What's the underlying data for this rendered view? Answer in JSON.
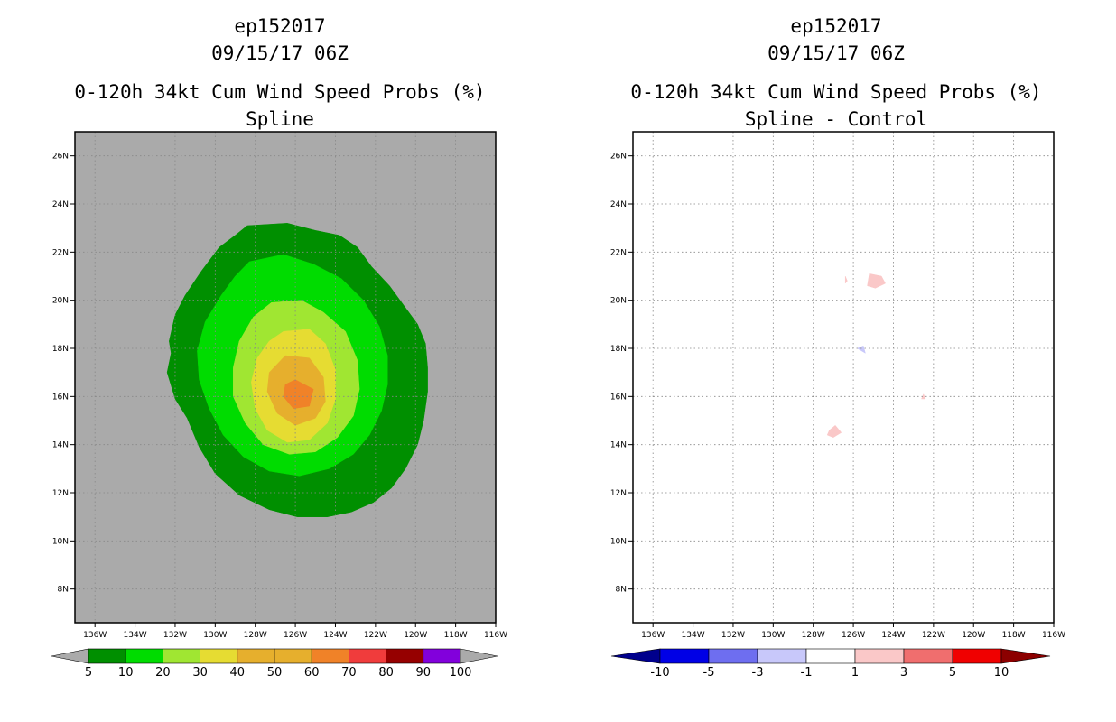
{
  "chart_data": [
    {
      "type": "contour",
      "title_lines": [
        "ep152017",
        "09/15/17 06Z"
      ],
      "subtitle_lines": [
        "0-120h 34kt Cum Wind Speed Probs (%)",
        "Spline"
      ],
      "x_tick_labels": [
        "136W",
        "134W",
        "132W",
        "130W",
        "128W",
        "126W",
        "124W",
        "122W",
        "120W",
        "118W",
        "116W"
      ],
      "y_tick_labels": [
        "26N",
        "24N",
        "22N",
        "20N",
        "18N",
        "16N",
        "14N",
        "12N",
        "10N",
        "8N"
      ],
      "xlim": [
        -137,
        -116
      ],
      "ylim": [
        6.6,
        27
      ],
      "grid": true,
      "background_color": "#aaaaaa",
      "contour_levels": [
        {
          "min": 5,
          "color": "#008f00",
          "outline": [
            [
              -128.4,
              23.1
            ],
            [
              -126.4,
              23.2
            ],
            [
              -125.0,
              22.9
            ],
            [
              -123.8,
              22.7
            ],
            [
              -122.9,
              22.2
            ],
            [
              -122.2,
              21.4
            ],
            [
              -121.3,
              20.6
            ],
            [
              -120.6,
              19.8
            ],
            [
              -119.9,
              19.0
            ],
            [
              -119.5,
              18.2
            ],
            [
              -119.4,
              17.2
            ],
            [
              -119.4,
              16.2
            ],
            [
              -119.6,
              15.0
            ],
            [
              -119.9,
              14.0
            ],
            [
              -120.5,
              13.0
            ],
            [
              -121.2,
              12.2
            ],
            [
              -122.1,
              11.6
            ],
            [
              -123.2,
              11.2
            ],
            [
              -124.4,
              11.0
            ],
            [
              -125.9,
              11.0
            ],
            [
              -127.3,
              11.3
            ],
            [
              -128.8,
              11.9
            ],
            [
              -130.0,
              12.8
            ],
            [
              -130.8,
              13.9
            ],
            [
              -131.4,
              15.1
            ],
            [
              -132.0,
              15.9
            ],
            [
              -132.4,
              17.0
            ],
            [
              -132.2,
              17.8
            ],
            [
              -132.3,
              18.3
            ],
            [
              -132.0,
              19.4
            ],
            [
              -131.5,
              20.2
            ],
            [
              -130.7,
              21.2
            ],
            [
              -129.8,
              22.2
            ],
            [
              -129.0,
              22.7
            ]
          ]
        },
        {
          "min": 10,
          "color": "#00dc00",
          "outline": [
            [
              -128.3,
              21.6
            ],
            [
              -126.6,
              21.9
            ],
            [
              -125.1,
              21.5
            ],
            [
              -123.7,
              20.9
            ],
            [
              -122.6,
              20.0
            ],
            [
              -121.8,
              18.9
            ],
            [
              -121.4,
              17.7
            ],
            [
              -121.4,
              16.5
            ],
            [
              -121.7,
              15.4
            ],
            [
              -122.3,
              14.4
            ],
            [
              -123.1,
              13.6
            ],
            [
              -124.3,
              13.0
            ],
            [
              -125.8,
              12.7
            ],
            [
              -127.3,
              12.9
            ],
            [
              -128.6,
              13.5
            ],
            [
              -129.6,
              14.4
            ],
            [
              -130.3,
              15.5
            ],
            [
              -130.8,
              16.7
            ],
            [
              -130.9,
              17.9
            ],
            [
              -130.5,
              19.1
            ],
            [
              -129.7,
              20.2
            ],
            [
              -129.0,
              21.0
            ]
          ]
        },
        {
          "min": 20,
          "color": "#a0e632",
          "outline": [
            [
              -127.2,
              19.9
            ],
            [
              -125.7,
              20.0
            ],
            [
              -124.6,
              19.5
            ],
            [
              -123.5,
              18.7
            ],
            [
              -122.9,
              17.5
            ],
            [
              -122.8,
              16.3
            ],
            [
              -123.1,
              15.2
            ],
            [
              -123.9,
              14.3
            ],
            [
              -125.0,
              13.7
            ],
            [
              -126.3,
              13.6
            ],
            [
              -127.6,
              14.0
            ],
            [
              -128.5,
              14.9
            ],
            [
              -129.1,
              16.0
            ],
            [
              -129.1,
              17.2
            ],
            [
              -128.8,
              18.3
            ],
            [
              -128.1,
              19.3
            ]
          ]
        },
        {
          "min": 30,
          "color": "#e6dc32",
          "outline": [
            [
              -126.6,
              18.7
            ],
            [
              -125.3,
              18.8
            ],
            [
              -124.5,
              18.2
            ],
            [
              -124.0,
              17.1
            ],
            [
              -124.0,
              15.9
            ],
            [
              -124.4,
              14.9
            ],
            [
              -125.3,
              14.2
            ],
            [
              -126.4,
              14.1
            ],
            [
              -127.4,
              14.6
            ],
            [
              -128.0,
              15.5
            ],
            [
              -128.2,
              16.6
            ],
            [
              -127.9,
              17.6
            ],
            [
              -127.3,
              18.3
            ]
          ]
        },
        {
          "min": 40,
          "color": "#e6af2d",
          "outline": [
            [
              -126.5,
              17.7
            ],
            [
              -125.3,
              17.6
            ],
            [
              -124.6,
              16.8
            ],
            [
              -124.5,
              15.8
            ],
            [
              -125.0,
              15.1
            ],
            [
              -126.0,
              14.8
            ],
            [
              -126.9,
              15.3
            ],
            [
              -127.4,
              16.2
            ],
            [
              -127.3,
              17.0
            ]
          ]
        },
        {
          "min": 50,
          "color": "#e6af2d",
          "outline": [
            [
              -126.1,
              17.1
            ],
            [
              -125.2,
              16.8
            ],
            [
              -125.0,
              16.0
            ],
            [
              -125.5,
              15.4
            ],
            [
              -126.4,
              15.4
            ],
            [
              -126.9,
              16.0
            ],
            [
              -126.8,
              16.7
            ]
          ]
        },
        {
          "min": 60,
          "color": "#f08228",
          "outline": [
            [
              -126.0,
              16.7
            ],
            [
              -125.1,
              16.3
            ],
            [
              -125.3,
              15.6
            ],
            [
              -126.1,
              15.5
            ],
            [
              -126.6,
              16.0
            ],
            [
              -126.5,
              16.5
            ]
          ]
        }
      ],
      "colorbar": {
        "labels": [
          "5",
          "10",
          "20",
          "30",
          "40",
          "50",
          "60",
          "70",
          "80",
          "90",
          "100"
        ],
        "colors": [
          "#008f00",
          "#00dc00",
          "#a0e632",
          "#e6dc32",
          "#e6af2d",
          "#e6af2d",
          "#f08228",
          "#f03c3c",
          "#960000",
          "#8200dc"
        ],
        "extend_color": "#aaaaaa"
      }
    },
    {
      "type": "contour",
      "title_lines": [
        "ep152017",
        "09/15/17 06Z"
      ],
      "subtitle_lines": [
        "0-120h 34kt Cum Wind Speed Probs (%)",
        "Spline - Control"
      ],
      "x_tick_labels": [
        "136W",
        "134W",
        "132W",
        "130W",
        "128W",
        "126W",
        "124W",
        "122W",
        "120W",
        "118W",
        "116W"
      ],
      "y_tick_labels": [
        "26N",
        "24N",
        "22N",
        "20N",
        "18N",
        "16N",
        "14N",
        "12N",
        "10N",
        "8N"
      ],
      "xlim": [
        -137,
        -116
      ],
      "ylim": [
        6.6,
        27
      ],
      "grid": true,
      "background_color": "#ffffff",
      "difference_patches": [
        {
          "range": "1 to 3",
          "color": "#fac8c8",
          "outline": [
            [
              -125.2,
              21.1
            ],
            [
              -124.6,
              21.0
            ],
            [
              -124.4,
              20.7
            ],
            [
              -124.9,
              20.5
            ],
            [
              -125.3,
              20.6
            ]
          ]
        },
        {
          "range": "1 to 3",
          "color": "#fac8c8",
          "outline": [
            [
              -126.4,
              21.0
            ],
            [
              -126.3,
              20.8
            ],
            [
              -126.4,
              20.7
            ]
          ]
        },
        {
          "range": "-3 to -1",
          "color": "#c8c8fa",
          "outline": [
            [
              -125.8,
              18.0
            ],
            [
              -125.5,
              18.1
            ],
            [
              -125.4,
              17.8
            ]
          ]
        },
        {
          "range": "1 to 3",
          "color": "#fac8c8",
          "outline": [
            [
              -122.5,
              16.1
            ],
            [
              -122.4,
              15.9
            ],
            [
              -122.6,
              15.9
            ]
          ]
        },
        {
          "range": "1 to 3",
          "color": "#fac8c8",
          "outline": [
            [
              -127.2,
              14.6
            ],
            [
              -126.9,
              14.8
            ],
            [
              -126.6,
              14.5
            ],
            [
              -127.0,
              14.3
            ],
            [
              -127.3,
              14.4
            ]
          ]
        }
      ],
      "colorbar": {
        "labels": [
          "-10",
          "-5",
          "-3",
          "-1",
          "1",
          "3",
          "5",
          "10"
        ],
        "colors": [
          "#0000e6",
          "#6e6ef0",
          "#c8c8fa",
          "#ffffff",
          "#fac8c8",
          "#f06e6e",
          "#f00000"
        ],
        "extend_left_color": "#00008c",
        "extend_right_color": "#8c0000"
      }
    }
  ]
}
